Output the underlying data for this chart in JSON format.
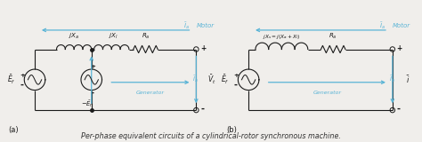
{
  "bg_color": "#f0eeeb",
  "title": "Per-phase equivalent circuits of a cylindrical-rotor synchronous machine.",
  "title_fontsize": 6.5,
  "title_color": "#333333",
  "circuit_color": "#1a1a1a",
  "blue_color": "#5ab4d6",
  "label_a": "(a)",
  "label_b": "(b)",
  "motor_label": "Motor",
  "generator_label": "Generator",
  "Ef_label": "$\\bar{E}_f$",
  "Vt_label": "$\\bar{V}_t$",
  "Er_label": "$-\\bar{E}_r$",
  "Ia_label": "$\\bar{I}_a$",
  "jXa_label": "$jX_a$",
  "jXl_label": "$jX_l$",
  "Ra_label": "$R_a$",
  "jXs_label": "$jX_s = j(X_a + X_l)$",
  "i_label": "$\\bar{i}$",
  "plus": "+",
  "minus": "-"
}
